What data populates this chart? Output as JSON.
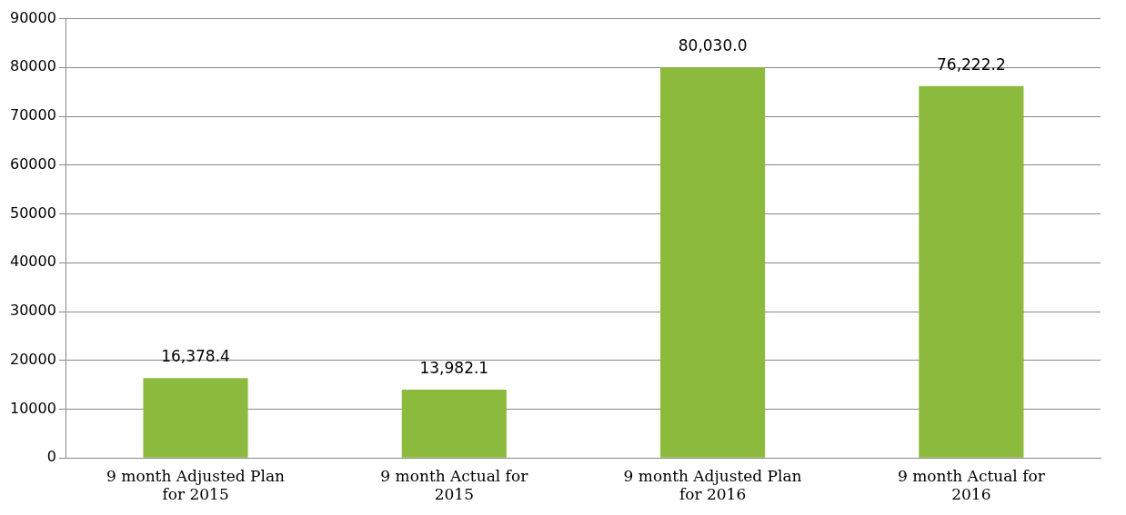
{
  "chart_data": {
    "type": "bar",
    "categories": [
      "9 month Adjusted Plan for 2015",
      "9 month Actual for 2015",
      "9 month Adjusted Plan for 2016",
      "9 month Actual for 2016"
    ],
    "values": [
      16378.4,
      13982.1,
      80030.0,
      76222.2
    ],
    "value_labels": [
      "16,378.4",
      "13,982.1",
      "80,030.0",
      "76,222.2"
    ],
    "color": "#8cba3c",
    "ylim": [
      0,
      90000
    ],
    "yticks": [
      0,
      10000,
      20000,
      30000,
      40000,
      50000,
      60000,
      70000,
      80000,
      90000
    ],
    "grid": "y",
    "legend": false
  }
}
